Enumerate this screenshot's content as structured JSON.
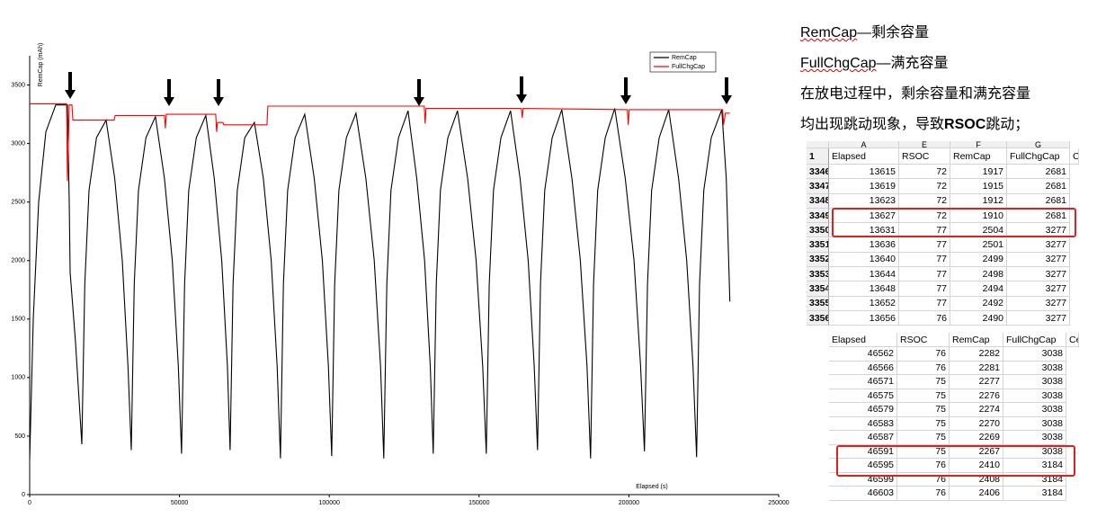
{
  "chart_data": {
    "type": "line",
    "x_label": "Elapsed (s)",
    "y_label": "RemCap (mAh)",
    "xlim": [
      0,
      250000
    ],
    "ylim": [
      0,
      3750
    ],
    "xticks": [
      0,
      50000,
      100000,
      150000,
      200000,
      250000
    ],
    "yticks": [
      0,
      500,
      1000,
      1500,
      2000,
      2500,
      3000,
      3500
    ],
    "legend": "upper-right",
    "series": [
      {
        "name": "RemCap",
        "color": "#000000",
        "x": [
          0,
          1200,
          3000,
          5400,
          8700,
          12600,
          13200,
          13500,
          15300,
          17400,
          18400,
          19800,
          22300,
          25500,
          28400,
          30900,
          32800,
          33900,
          34900,
          36300,
          38800,
          42000,
          45000,
          47600,
          49600,
          50700,
          51700,
          53100,
          55600,
          58800,
          61600,
          64100,
          66000,
          66900,
          67900,
          69300,
          71800,
          75000,
          78000,
          80600,
          82600,
          83700,
          84700,
          86100,
          88600,
          91800,
          95000,
          97700,
          99700,
          100800,
          101800,
          103200,
          105700,
          108900,
          112200,
          115000,
          117100,
          118200,
          119200,
          120600,
          123100,
          126300,
          129200,
          131800,
          133700,
          134700,
          135700,
          137100,
          139600,
          142800,
          146200,
          149000,
          151200,
          152400,
          153400,
          154800,
          157300,
          160500,
          163700,
          166400,
          168400,
          169500,
          170500,
          171900,
          174400,
          177600,
          181000,
          183800,
          186000,
          187200,
          188200,
          189600,
          192100,
          195300,
          198800,
          201700,
          203900,
          205200,
          206200,
          207600,
          210100,
          213300,
          216600,
          219300,
          221400,
          222600,
          223600,
          225000,
          227500,
          231000,
          232500,
          233700
        ],
        "values": [
          300,
          1500,
          2500,
          3100,
          3330,
          3330,
          2500,
          1900,
          1300,
          430,
          1800,
          2600,
          3050,
          3200,
          2700,
          2000,
          1100,
          380,
          1800,
          2600,
          3050,
          3230,
          2700,
          2000,
          1100,
          350,
          1800,
          2600,
          3050,
          3240,
          2700,
          2000,
          1100,
          380,
          1800,
          2600,
          3050,
          3180,
          2700,
          2000,
          1100,
          310,
          1800,
          2600,
          3050,
          3250,
          2700,
          2000,
          1100,
          330,
          1800,
          2600,
          3050,
          3260,
          2700,
          2000,
          1100,
          310,
          1800,
          2600,
          3050,
          3280,
          2700,
          2000,
          1100,
          350,
          1800,
          2600,
          3050,
          3280,
          2700,
          2000,
          1100,
          350,
          1800,
          2600,
          3050,
          3280,
          2700,
          2000,
          1100,
          380,
          1800,
          2600,
          3050,
          3290,
          2700,
          2000,
          1100,
          310,
          1800,
          2600,
          3050,
          3300,
          2700,
          2000,
          1100,
          370,
          1800,
          2600,
          3050,
          3290,
          2700,
          2000,
          1100,
          320,
          1800,
          2600,
          3050,
          3290,
          2700,
          1650
        ]
      },
      {
        "name": "FullChgCap",
        "color": "#ff0000",
        "x": [
          0,
          11700,
          12300,
          12600,
          13200,
          14100,
          14400,
          28200,
          28500,
          45000,
          45300,
          45600,
          62100,
          62400,
          62700,
          64500,
          64800,
          79200,
          79500,
          131700,
          132000,
          132300,
          164100,
          164400,
          164700,
          199500,
          199800,
          200100,
          231300,
          231600,
          232200,
          233700
        ],
        "values": [
          3340,
          3340,
          3340,
          2680,
          3330,
          3330,
          3200,
          3200,
          3240,
          3240,
          3130,
          3250,
          3250,
          3100,
          3180,
          3180,
          3160,
          3160,
          3320,
          3320,
          3170,
          3300,
          3300,
          3220,
          3300,
          3290,
          3160,
          3290,
          3290,
          3160,
          3260,
          3260
        ]
      }
    ]
  },
  "notes": {
    "definitions": [
      {
        "term": "RemCap",
        "text": "—剩余容量"
      },
      {
        "term": "FullChgCap",
        "text": "—满充容量"
      }
    ],
    "line1": "在放电过程中，剩余容量和满充容量",
    "line2_a": "均出现跳动现象，导致",
    "line2_b": "RSOC",
    "line2_c": "跳动；"
  },
  "tables": [
    {
      "column_letters": [
        "A",
        "E",
        "F",
        "G"
      ],
      "header_row_number": "1",
      "header": [
        "Elapsed",
        "RSOC",
        "RemCap",
        "FullChgCap",
        "C"
      ],
      "row_numbers": [
        3346,
        3347,
        3348,
        3349,
        3350,
        3351,
        3352,
        3353,
        3354,
        3355,
        3356
      ],
      "rows": [
        [
          13615,
          72,
          1917,
          2681
        ],
        [
          13619,
          72,
          1915,
          2681
        ],
        [
          13623,
          72,
          1912,
          2681
        ],
        [
          13627,
          72,
          1910,
          2681
        ],
        [
          13631,
          77,
          2504,
          3277
        ],
        [
          13636,
          77,
          2501,
          3277
        ],
        [
          13640,
          77,
          2499,
          3277
        ],
        [
          13644,
          77,
          2498,
          3277
        ],
        [
          13648,
          77,
          2494,
          3277
        ],
        [
          13652,
          77,
          2492,
          3277
        ],
        [
          13656,
          76,
          2490,
          3277
        ]
      ]
    },
    {
      "header": [
        "Elapsed",
        "RSOC",
        "RemCap",
        "FullChgCap",
        "Ce"
      ],
      "rows": [
        [
          46562,
          76,
          2282,
          3038
        ],
        [
          46566,
          76,
          2281,
          3038
        ],
        [
          46571,
          75,
          2277,
          3038
        ],
        [
          46575,
          75,
          2276,
          3038
        ],
        [
          46579,
          75,
          2274,
          3038
        ],
        [
          46583,
          75,
          2270,
          3038
        ],
        [
          46587,
          75,
          2269,
          3038
        ],
        [
          46591,
          75,
          2267,
          3038
        ],
        [
          46595,
          76,
          2410,
          3184
        ],
        [
          46599,
          76,
          2408,
          3184
        ],
        [
          46603,
          76,
          2406,
          3184
        ]
      ]
    }
  ]
}
